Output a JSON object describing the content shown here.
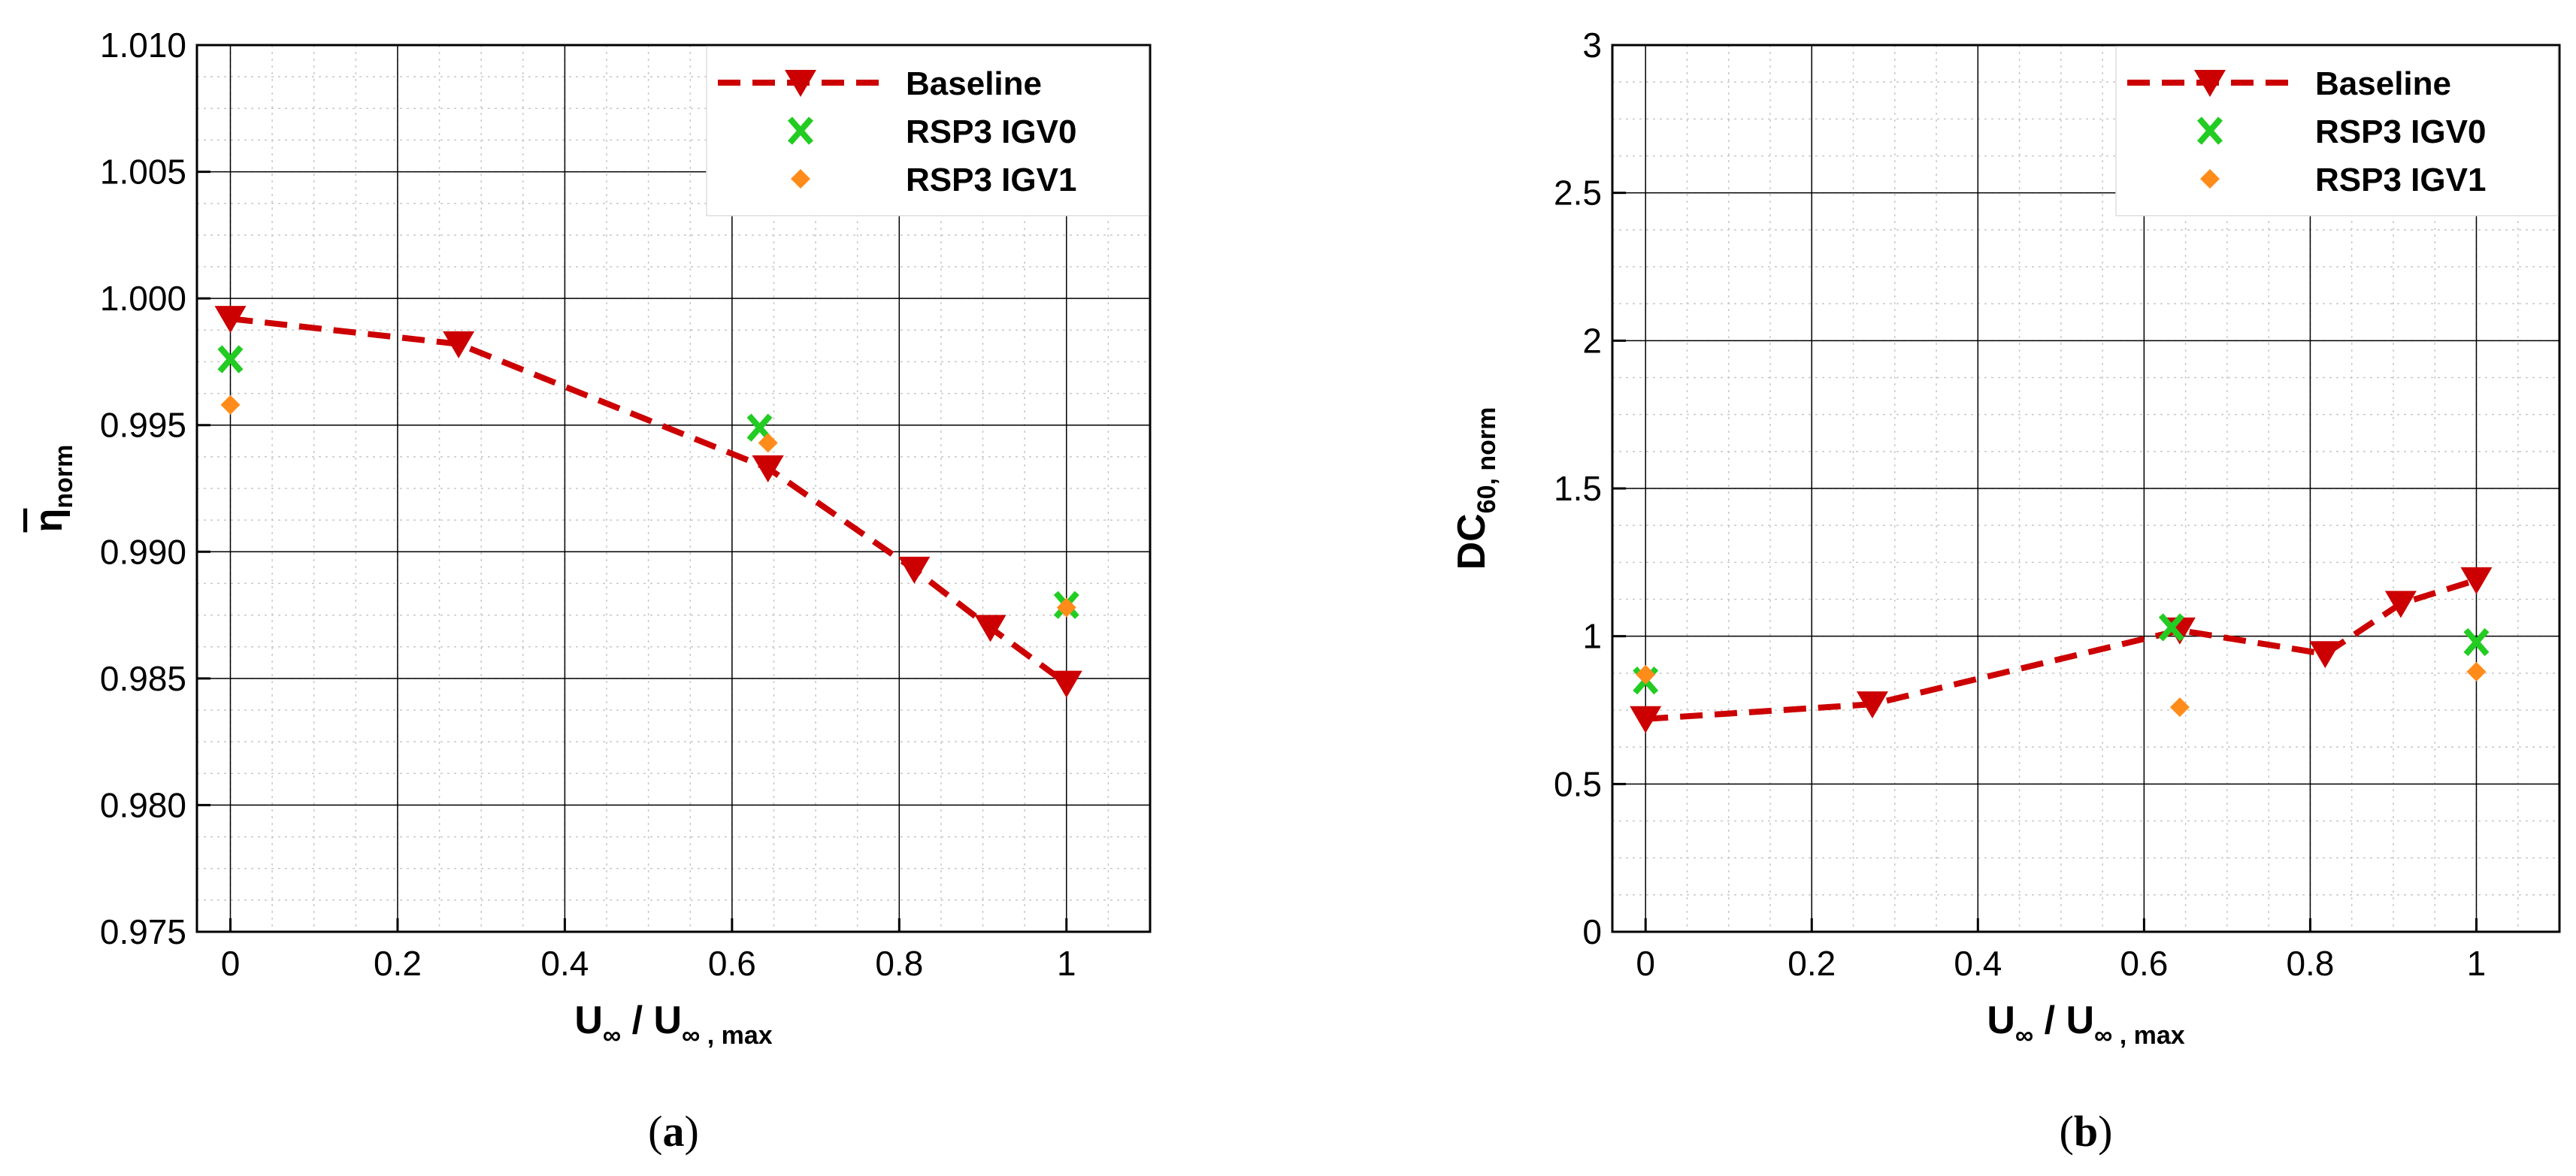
{
  "chart_data": [
    {
      "type": "line",
      "panel_label": "(a)",
      "xlabel": {
        "main": "U",
        "sub1": "∞",
        "sep": " / U",
        "sub2": "∞ , max"
      },
      "ylabel": {
        "main": "η",
        "sub": "norm"
      },
      "xlim": [
        -0.04,
        1.1
      ],
      "ylim": [
        0.975,
        1.01
      ],
      "xticks": [
        0,
        0.2,
        0.4,
        0.6,
        0.8,
        1
      ],
      "xtick_labels": [
        "0",
        "0.2",
        "0.4",
        "0.6",
        "0.8",
        "1"
      ],
      "yticks": [
        0.975,
        0.98,
        0.985,
        0.99,
        0.995,
        1.0,
        1.005,
        1.01
      ],
      "ytick_labels": [
        "0.975",
        "0.980",
        "0.985",
        "0.990",
        "0.995",
        "1.000",
        "1.005",
        "1.010"
      ],
      "legend": {
        "position": "top-right"
      },
      "series": [
        {
          "name": "Baseline",
          "style": "dashed-triangle",
          "color": "#cc0000",
          "x": [
            0,
            0.273,
            0.643,
            0.818,
            0.909,
            1.0
          ],
          "y": [
            0.9992,
            0.9982,
            0.9933,
            0.9893,
            0.987,
            0.9848
          ]
        },
        {
          "name": "RSP3 IGV0",
          "style": "x",
          "color": "#22cc22",
          "x": [
            0,
            0.633,
            1.0
          ],
          "y": [
            0.9976,
            0.9949,
            0.9879
          ]
        },
        {
          "name": "RSP3 IGV1",
          "style": "diamond",
          "color": "#ff8c1a",
          "x": [
            0,
            0.643,
            1.0
          ],
          "y": [
            0.9958,
            0.9943,
            0.9878
          ]
        }
      ]
    },
    {
      "type": "line",
      "panel_label": "(b)",
      "xlabel": {
        "main": "U",
        "sub1": "∞",
        "sep": " / U",
        "sub2": "∞ , max"
      },
      "ylabel": {
        "main": "DC",
        "sub": "60, norm"
      },
      "xlim": [
        -0.04,
        1.1
      ],
      "ylim": [
        0,
        3
      ],
      "xticks": [
        0,
        0.2,
        0.4,
        0.6,
        0.8,
        1
      ],
      "xtick_labels": [
        "0",
        "0.2",
        "0.4",
        "0.6",
        "0.8",
        "1"
      ],
      "yticks": [
        0,
        0.5,
        1,
        1.5,
        2,
        2.5,
        3
      ],
      "ytick_labels": [
        "0",
        "0.5",
        "1",
        "1.5",
        "2",
        "2.5",
        "3"
      ],
      "legend": {
        "position": "top-right"
      },
      "series": [
        {
          "name": "Baseline",
          "style": "dashed-triangle",
          "color": "#cc0000",
          "x": [
            0,
            0.273,
            0.643,
            0.818,
            0.909,
            1.0
          ],
          "y": [
            0.72,
            0.77,
            1.02,
            0.94,
            1.11,
            1.19
          ]
        },
        {
          "name": "RSP3 IGV0",
          "style": "x",
          "color": "#22cc22",
          "x": [
            0,
            0.633,
            1.0
          ],
          "y": [
            0.85,
            1.03,
            0.98
          ]
        },
        {
          "name": "RSP3 IGV1",
          "style": "diamond",
          "color": "#ff8c1a",
          "x": [
            0,
            0.643,
            1.0
          ],
          "y": [
            0.87,
            0.76,
            0.88
          ]
        }
      ]
    }
  ]
}
